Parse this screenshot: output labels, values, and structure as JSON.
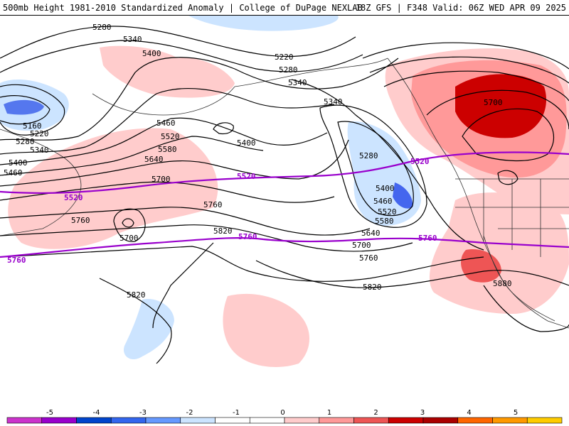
{
  "header": {
    "title_left": "500mb Height 1981-2010 Standardized Anomaly | College of DuPage NEXLAB",
    "title_right": "18Z GFS | F348 Valid: 06Z WED APR 09 2025"
  },
  "map": {
    "background": "#ffffff",
    "contour_color": "#000000",
    "highlight_contour_color": "#9900cc",
    "coast_color": "#333333",
    "labels": {
      "c5280a": "5280",
      "c5340a": "5340",
      "c5400a": "5400",
      "c5220a": "5220",
      "c5280b": "5280",
      "c5340b": "5340",
      "c5160": "5160",
      "c5220b": "5220",
      "c5280c": "5280",
      "c5340c": "5340",
      "c5400b": "5400",
      "c5460a": "5460",
      "c5460b": "5460",
      "c5520a": "5520",
      "c5580a": "5580",
      "c5640a": "5640",
      "c5700a": "5700",
      "c5760a": "5760",
      "c5760b": "5760",
      "c5700b": "5700",
      "c5820a": "5820",
      "c5820b": "5820",
      "c5820c": "5820",
      "c5340d": "5340",
      "c5400c": "5400",
      "c5280d": "5280",
      "c5400d": "5400",
      "c5460c": "5460",
      "c5520b": "5520",
      "c5580b": "5580",
      "c5640b": "5640",
      "c5700c": "5700",
      "c5760c": "5760",
      "c5700d": "5700",
      "c5880": "5880",
      "p5520a": "5520",
      "p5520b": "5520",
      "p5520c": "5520",
      "p5760a": "5760",
      "p5760b": "5760",
      "p5760c": "5760"
    }
  },
  "colorbar": {
    "ticks": [
      "-5",
      "-4",
      "-3",
      "-2",
      "-1",
      "0",
      "1",
      "2",
      "3",
      "4",
      "5"
    ],
    "colors": [
      "#cc33cc",
      "#9900cc",
      "#0044cc",
      "#3366ee",
      "#6699ff",
      "#cce4ff",
      "#ffffff",
      "#ffffff",
      "#ffcccc",
      "#ff9999",
      "#ee5555",
      "#cc0000",
      "#aa0000",
      "#ff6600",
      "#ff9900",
      "#ffcc00"
    ]
  }
}
